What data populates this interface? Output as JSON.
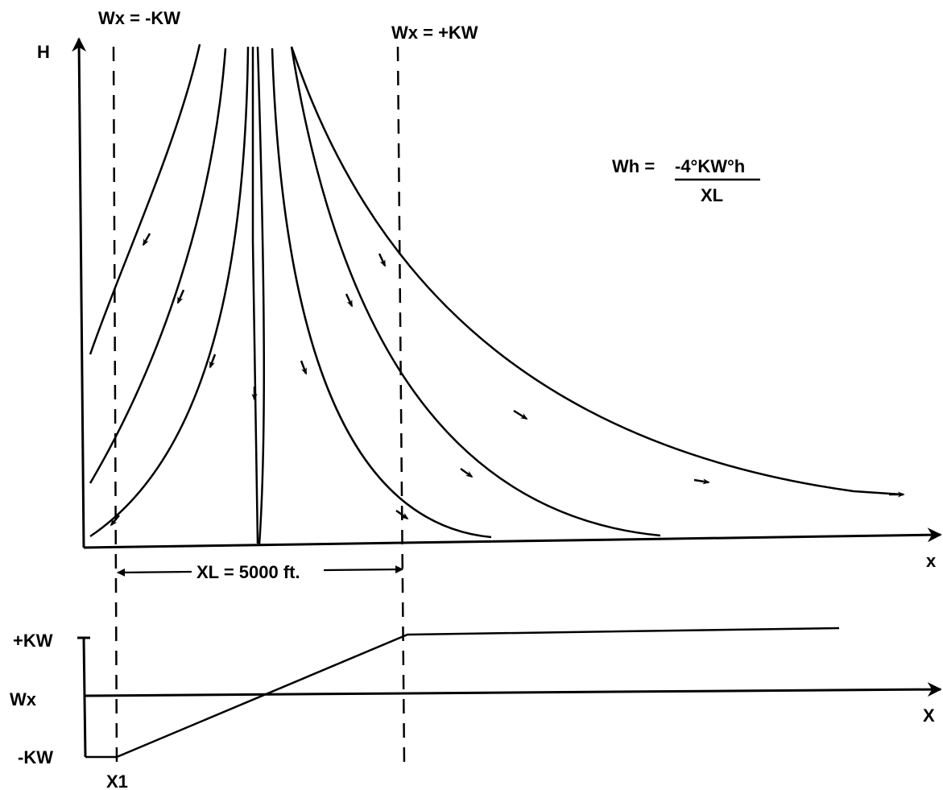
{
  "labels": {
    "wx_neg": "Wx = -KW",
    "wx_pos": "Wx = +KW",
    "h_axis": "H",
    "x_axis_top": "x",
    "x_axis_bottom": "X",
    "xl_distance": "XL = 5000 ft.",
    "plus_kw": "+KW",
    "minus_kw": "-KW",
    "wx_axis": "Wx",
    "x1": "X1"
  },
  "formula": {
    "lhs": "Wh =",
    "numerator": "-4°KW°h",
    "denominator": "XL"
  },
  "colors": {
    "ink": "#000000",
    "background": "#ffffff"
  }
}
